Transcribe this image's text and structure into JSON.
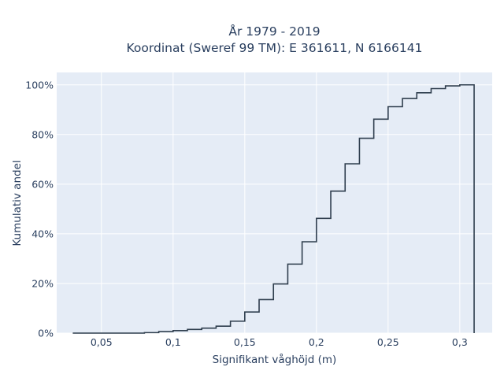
{
  "chart_data": {
    "type": "line",
    "subtype": "cumulative-step-histogram",
    "title_line1": "År 1979 - 2019",
    "title_line2": "Koordinat (Sweref 99 TM): E 361611, N 6166141",
    "xlabel": "Signifikant våghöjd (m)",
    "ylabel": "Kumulativ andel",
    "xlim": [
      0.0188,
      0.3226
    ],
    "ylim": [
      0,
      1.05
    ],
    "x_ticks": [
      0.05,
      0.1,
      0.15,
      0.2,
      0.25,
      0.3
    ],
    "x_tick_labels": [
      "0,05",
      "0,1",
      "0,15",
      "0,2",
      "0,25",
      "0,3"
    ],
    "y_ticks": [
      0,
      0.2,
      0.4,
      0.6,
      0.8,
      1.0
    ],
    "y_tick_labels": [
      "0%",
      "20%",
      "40%",
      "60%",
      "80%",
      "100%"
    ],
    "grid": true,
    "line_color": "#2f3e4e",
    "plot_bg": "#e5ecf6",
    "bin_edges": [
      0.03,
      0.04,
      0.05,
      0.06,
      0.07,
      0.08,
      0.09,
      0.1,
      0.11,
      0.12,
      0.13,
      0.14,
      0.15,
      0.16,
      0.17,
      0.18,
      0.19,
      0.2,
      0.21,
      0.22,
      0.23,
      0.24,
      0.25,
      0.26,
      0.27,
      0.28,
      0.29,
      0.3,
      0.31
    ],
    "cumulative": [
      0.0,
      0.0,
      0.0,
      0.0,
      0.0,
      0.002,
      0.006,
      0.01,
      0.015,
      0.02,
      0.028,
      0.048,
      0.085,
      0.135,
      0.198,
      0.278,
      0.368,
      0.462,
      0.572,
      0.682,
      0.785,
      0.862,
      0.912,
      0.945,
      0.968,
      0.985,
      0.996,
      1.0
    ]
  }
}
